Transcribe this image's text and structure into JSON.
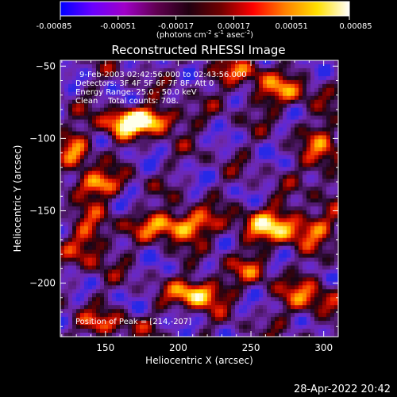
{
  "chart_data": {
    "type": "heatmap",
    "title": "Reconstructed RHESSI Image",
    "xlabel": "Heliocentric X (arcsec)",
    "ylabel": "Heliocentric Y (arcsec)",
    "xlim": [
      119,
      310
    ],
    "ylim": [
      -237,
      -46
    ],
    "xticks": [
      150,
      200,
      250,
      300
    ],
    "yticks": [
      -50,
      -100,
      -150,
      -200
    ],
    "colorbar": {
      "range": [
        -0.00085,
        0.00085
      ],
      "ticks": [
        "-0.00085",
        "-0.00051",
        "-0.00017",
        "0.00017",
        "0.00051",
        "0.00085"
      ],
      "unit_main": "(photons cm",
      "unit_exp1": "-2",
      "unit_mid": " s",
      "unit_exp2": "-1",
      "unit_end": " asec",
      "unit_exp3": "-2",
      "unit_close": ")",
      "stops": [
        "#0000ff",
        "#6a00ff",
        "#a000c8",
        "#600050",
        "#200010",
        "#700000",
        "#ff0000",
        "#ff8000",
        "#ffe000",
        "#ffffff"
      ]
    },
    "annotations": [
      "9-Feb-2003 02:42:56.000 to 02:43:56.000",
      "Detectors: 3F 4F 5F 6F 7F 8F, Att 0",
      "Energy Range: 25.0 - 50.0 keV",
      "Clean    Total counts: 708."
    ],
    "peak_label": "Position of Peak = [214,-207]",
    "peak": [
      214,
      -207
    ],
    "sources": [
      {
        "x": 180,
        "y": -87,
        "sx": 16,
        "sy": 6,
        "amp": 1.0
      },
      {
        "x": 160,
        "y": -92,
        "sx": 10,
        "sy": 7,
        "amp": 0.6
      },
      {
        "x": 130,
        "y": -108,
        "sx": 8,
        "sy": 10,
        "amp": 0.6
      },
      {
        "x": 143,
        "y": -132,
        "sx": 12,
        "sy": 6,
        "amp": 0.8
      },
      {
        "x": 200,
        "y": -160,
        "sx": 18,
        "sy": 7,
        "amp": 0.95
      },
      {
        "x": 214,
        "y": -207,
        "sx": 12,
        "sy": 7,
        "amp": 1.0
      },
      {
        "x": 262,
        "y": -160,
        "sx": 14,
        "sy": 9,
        "amp": 0.7
      },
      {
        "x": 290,
        "y": -162,
        "sx": 14,
        "sy": 8,
        "amp": 0.6
      },
      {
        "x": 300,
        "y": -110,
        "sx": 10,
        "sy": 16,
        "amp": 0.5
      },
      {
        "x": 270,
        "y": -68,
        "sx": 16,
        "sy": 8,
        "amp": 0.55
      },
      {
        "x": 240,
        "y": -55,
        "sx": 14,
        "sy": 6,
        "amp": 0.5
      },
      {
        "x": 140,
        "y": -170,
        "sx": 10,
        "sy": 14,
        "amp": 0.55
      },
      {
        "x": 290,
        "y": -210,
        "sx": 14,
        "sy": 10,
        "amp": 0.55
      },
      {
        "x": 150,
        "y": -228,
        "sx": 18,
        "sy": 6,
        "amp": 0.45
      },
      {
        "x": 250,
        "y": -190,
        "sx": 10,
        "sy": 8,
        "amp": 0.4
      }
    ]
  },
  "footer": {
    "timestamp": "28-Apr-2022 20:42"
  }
}
